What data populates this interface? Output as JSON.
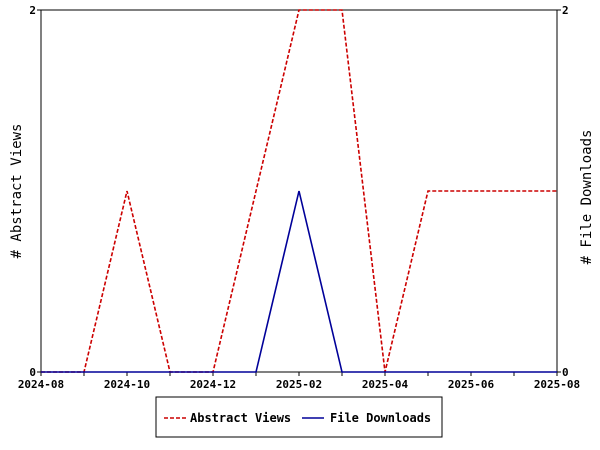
{
  "chart_data": {
    "type": "line",
    "x": [
      "2024-08",
      "2024-09",
      "2024-10",
      "2024-11",
      "2024-12",
      "2025-01",
      "2025-02",
      "2025-03",
      "2025-04",
      "2025-05",
      "2025-06",
      "2025-07",
      "2025-08"
    ],
    "x_tick_labels": [
      "2024-08",
      "2024-10",
      "2024-12",
      "2025-02",
      "2025-04",
      "2025-06",
      "2025-08"
    ],
    "series": [
      {
        "name": "Abstract Views",
        "axis": "left",
        "color": "#cc0000",
        "style": "dashed",
        "values": [
          0,
          0,
          1,
          0,
          0,
          1,
          2,
          2,
          0,
          1,
          1,
          1,
          1
        ]
      },
      {
        "name": "File Downloads",
        "axis": "right",
        "color": "#000099",
        "style": "solid",
        "values": [
          0,
          0,
          0,
          0,
          0,
          0,
          1,
          0,
          0,
          0,
          0,
          0,
          0
        ]
      }
    ],
    "ylabel_left": "# Abstract Views",
    "ylabel_right": "# File Downloads",
    "ylim_left": [
      0,
      2
    ],
    "ylim_right": [
      0,
      2
    ],
    "y_ticks_left": [
      "0",
      "2"
    ],
    "y_ticks_right": [
      "0",
      "2"
    ],
    "grid": false,
    "legend": "bottom-center"
  }
}
